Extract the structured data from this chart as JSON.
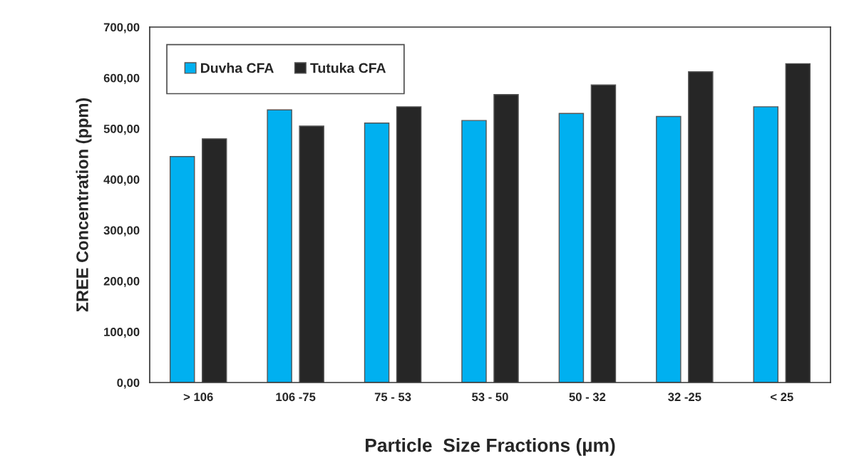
{
  "chart_data": {
    "type": "bar",
    "xlabel": "Particle  Size Fractions (µm)",
    "ylabel": "ΣREE Concentration (ppm)",
    "categories": [
      "> 106",
      "106 -75",
      "75 - 53",
      "53 - 50",
      "50 - 32",
      "32 -25",
      "< 25"
    ],
    "series": [
      {
        "name": "Duvha CFA",
        "color": "#00b0f0",
        "values": [
          445,
          537,
          511,
          516,
          530,
          524,
          543
        ]
      },
      {
        "name": "Tutuka CFA",
        "color": "#262626",
        "values": [
          480,
          505,
          543,
          567,
          586,
          612,
          628
        ]
      }
    ],
    "ylim": [
      0,
      700
    ],
    "yticks": [
      {
        "value": 0,
        "label": "0,00"
      },
      {
        "value": 100,
        "label": "100,00"
      },
      {
        "value": 200,
        "label": "200,00"
      },
      {
        "value": 300,
        "label": "300,00"
      },
      {
        "value": 400,
        "label": "400,00"
      },
      {
        "value": 500,
        "label": "500,00"
      },
      {
        "value": 600,
        "label": "600,00"
      },
      {
        "value": 700,
        "label": "700,00"
      }
    ],
    "grid": false,
    "legend": "top left"
  }
}
